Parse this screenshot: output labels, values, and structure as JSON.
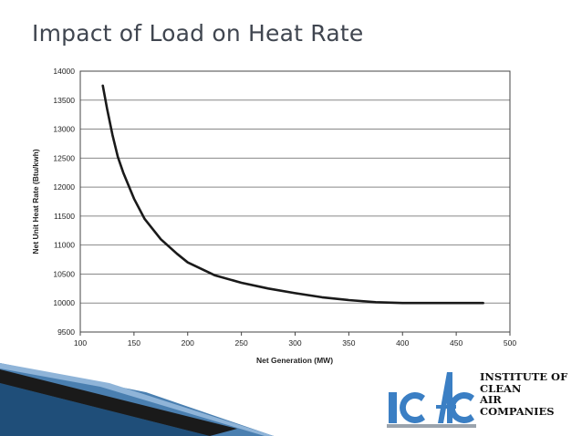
{
  "slide": {
    "title": "Impact of Load on Heat Rate"
  },
  "chart_data": {
    "type": "line",
    "title": "Impact of Load on Heat Rate",
    "xlabel": "Net Generation (MW)",
    "ylabel": "Net Unit Heat Rate (Btu/kwh)",
    "xlim": [
      100,
      500
    ],
    "ylim": [
      9500,
      14000
    ],
    "xticks": [
      "100",
      "150",
      "200",
      "250",
      "300",
      "350",
      "400",
      "450",
      "500"
    ],
    "yticks": [
      "9500",
      "10000",
      "10500",
      "11000",
      "11500",
      "12000",
      "12500",
      "13000",
      "13500",
      "14000"
    ],
    "grid": true,
    "legend": "none",
    "series": [
      {
        "x": [
          121,
          125,
          130,
          135,
          140,
          150,
          160,
          175,
          190,
          200,
          225,
          250,
          275,
          300,
          325,
          350,
          375,
          400,
          425,
          450,
          475
        ],
        "y": [
          13750,
          13350,
          12900,
          12520,
          12250,
          11800,
          11450,
          11100,
          10850,
          10700,
          10480,
          10350,
          10250,
          10170,
          10100,
          10050,
          10015,
          10000,
          10000,
          10000,
          10000
        ],
        "color": "#1a1a1a"
      }
    ]
  },
  "logo": {
    "mark": "ICAC",
    "lines": [
      "INSTITUTE OF",
      "CLEAN",
      "AIR",
      "COMPANIES"
    ]
  }
}
